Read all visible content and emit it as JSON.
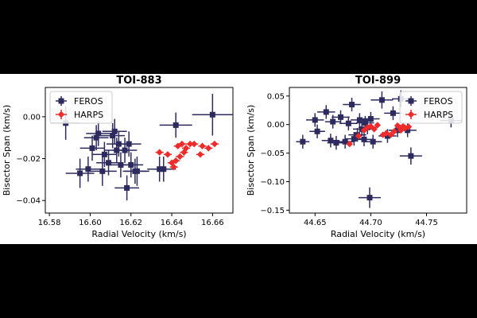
{
  "colors": {
    "feros": "#2d2a5e",
    "harps": "#ee2b2b",
    "background": "#000000"
  },
  "chart_data": [
    {
      "type": "scatter",
      "title": "TOI-883",
      "xlabel": "Radial Velocity  (km/s)",
      "ylabel": "Bisector Span (km/s)",
      "xlim": [
        16.578,
        16.67
      ],
      "ylim": [
        -0.046,
        0.014
      ],
      "xticks": [
        16.58,
        16.6,
        16.62,
        16.64,
        16.66
      ],
      "xtick_labels": [
        "16.58",
        "16.60",
        "16.62",
        "16.64",
        "16.66"
      ],
      "yticks": [
        0.0,
        -0.02,
        -0.04
      ],
      "ytick_labels": [
        "0.00",
        "−0.02",
        "−0.04"
      ],
      "legend_position": "top-left",
      "series": [
        {
          "name": "FEROS",
          "marker": "square",
          "color_key": "feros",
          "x": [
            16.588,
            16.595,
            16.599,
            16.601,
            16.603,
            16.604,
            16.606,
            16.607,
            16.609,
            16.611,
            16.612,
            16.613,
            16.614,
            16.615,
            16.617,
            16.618,
            16.619,
            16.62,
            16.622,
            16.623,
            16.634,
            16.636,
            16.642,
            16.66
          ],
          "y": [
            -0.003,
            -0.027,
            -0.025,
            -0.015,
            -0.01,
            -0.008,
            -0.026,
            -0.018,
            -0.022,
            -0.009,
            -0.007,
            -0.016,
            -0.013,
            -0.023,
            -0.016,
            -0.034,
            -0.013,
            -0.023,
            -0.026,
            -0.026,
            -0.025,
            -0.025,
            -0.004,
            0.001
          ],
          "xerr": [
            0.007,
            0.007,
            0.006,
            0.006,
            0.006,
            0.006,
            0.007,
            0.006,
            0.006,
            0.006,
            0.006,
            0.006,
            0.006,
            0.006,
            0.006,
            0.006,
            0.006,
            0.006,
            0.006,
            0.006,
            0.006,
            0.006,
            0.008,
            0.01
          ],
          "yerr": [
            0.008,
            0.007,
            0.006,
            0.006,
            0.006,
            0.006,
            0.007,
            0.006,
            0.006,
            0.006,
            0.006,
            0.006,
            0.006,
            0.006,
            0.006,
            0.006,
            0.006,
            0.006,
            0.006,
            0.007,
            0.006,
            0.006,
            0.006,
            0.01
          ]
        },
        {
          "name": "HARPS",
          "marker": "diamond",
          "color_key": "harps",
          "x": [
            16.634,
            16.638,
            16.64,
            16.641,
            16.642,
            16.643,
            16.644,
            16.645,
            16.646,
            16.647,
            16.649,
            16.651,
            16.654,
            16.655,
            16.658,
            16.661
          ],
          "y": [
            -0.017,
            -0.018,
            -0.022,
            -0.024,
            -0.021,
            -0.014,
            -0.019,
            -0.013,
            -0.017,
            -0.015,
            -0.013,
            -0.013,
            -0.018,
            -0.014,
            -0.015,
            -0.013
          ],
          "xerr": [
            0.002,
            0.002,
            0.002,
            0.002,
            0.002,
            0.002,
            0.002,
            0.002,
            0.002,
            0.002,
            0.002,
            0.002,
            0.002,
            0.002,
            0.002,
            0.002
          ],
          "yerr": [
            0.0012,
            0.0012,
            0.0012,
            0.0012,
            0.0012,
            0.0012,
            0.0012,
            0.0012,
            0.0012,
            0.0012,
            0.0012,
            0.0012,
            0.0012,
            0.0012,
            0.0012,
            0.0012
          ]
        }
      ]
    },
    {
      "type": "scatter",
      "title": "TOI-899",
      "xlabel": "Radial Velocity  (km/s)",
      "ylabel": "Bisector Span (km/s)",
      "xlim": [
        44.627,
        44.786
      ],
      "ylim": [
        -0.155,
        0.065
      ],
      "xticks": [
        44.65,
        44.7,
        44.75
      ],
      "xtick_labels": [
        "44.65",
        "44.70",
        "44.75"
      ],
      "yticks": [
        0.05,
        0.0,
        -0.05,
        -0.1,
        -0.15
      ],
      "ytick_labels": [
        "0.05",
        "0.00",
        "−0.05",
        "−0.10",
        "−0.15"
      ],
      "legend_position": "top-right",
      "series": [
        {
          "name": "FEROS",
          "marker": "square",
          "color_key": "feros",
          "x": [
            44.639,
            44.65,
            44.652,
            44.66,
            44.664,
            44.666,
            44.669,
            44.673,
            44.677,
            44.68,
            44.683,
            44.685,
            44.688,
            44.69,
            44.692,
            44.694,
            44.695,
            44.697,
            44.699,
            44.7,
            44.702,
            44.71,
            44.715,
            44.72,
            44.724,
            44.727,
            44.733,
            44.736,
            44.772
          ],
          "y": [
            -0.03,
            0.008,
            -0.012,
            0.022,
            -0.028,
            0.005,
            -0.032,
            0.013,
            -0.03,
            0.002,
            0.035,
            -0.025,
            -0.018,
            0.008,
            -0.008,
            -0.026,
            0.003,
            -0.005,
            -0.128,
            0.01,
            -0.03,
            0.043,
            -0.02,
            0.02,
            -0.01,
            0.045,
            -0.01,
            -0.055,
            0.007
          ],
          "xerr": [
            0.006,
            0.008,
            0.007,
            0.008,
            0.008,
            0.007,
            0.008,
            0.008,
            0.008,
            0.008,
            0.008,
            0.008,
            0.008,
            0.008,
            0.008,
            0.008,
            0.008,
            0.008,
            0.01,
            0.008,
            0.008,
            0.01,
            0.008,
            0.008,
            0.008,
            0.008,
            0.008,
            0.01,
            0.01
          ],
          "yerr": [
            0.012,
            0.012,
            0.012,
            0.012,
            0.012,
            0.012,
            0.012,
            0.012,
            0.012,
            0.012,
            0.012,
            0.012,
            0.012,
            0.012,
            0.012,
            0.012,
            0.012,
            0.012,
            0.018,
            0.012,
            0.012,
            0.015,
            0.012,
            0.012,
            0.012,
            0.015,
            0.012,
            0.015,
            0.012
          ]
        },
        {
          "name": "HARPS",
          "marker": "diamond",
          "color_key": "harps",
          "x": [
            44.681,
            44.689,
            44.694,
            44.697,
            44.7,
            44.703,
            44.706,
            44.711,
            44.714,
            44.718,
            44.721,
            44.724,
            44.726,
            44.727,
            44.729,
            44.731,
            44.734
          ],
          "y": [
            -0.034,
            -0.02,
            -0.01,
            -0.005,
            -0.003,
            -0.008,
            -0.001,
            -0.018,
            -0.015,
            -0.018,
            -0.012,
            -0.002,
            -0.005,
            -0.01,
            -0.003,
            -0.006,
            -0.004
          ],
          "xerr": [
            0.002,
            0.002,
            0.002,
            0.002,
            0.002,
            0.002,
            0.002,
            0.002,
            0.002,
            0.002,
            0.002,
            0.002,
            0.002,
            0.002,
            0.002,
            0.002,
            0.002
          ],
          "yerr": [
            0.004,
            0.004,
            0.004,
            0.004,
            0.004,
            0.004,
            0.004,
            0.004,
            0.004,
            0.004,
            0.004,
            0.004,
            0.004,
            0.004,
            0.004,
            0.004,
            0.004
          ]
        }
      ]
    }
  ]
}
